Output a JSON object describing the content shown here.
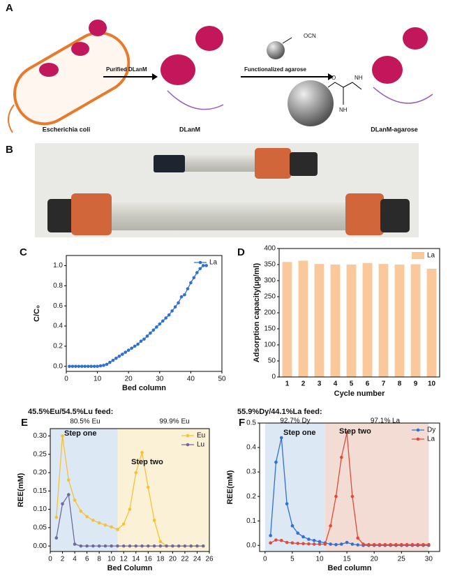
{
  "panel_labels": [
    "A",
    "B",
    "C",
    "D",
    "E",
    "F"
  ],
  "diagram": {
    "host": "Escherichia coli",
    "step1": "Purified DLanM",
    "protein": "DLanM",
    "step2": "Functionalized agarose",
    "reagent_group": "OCN",
    "product": "DLanM-agarose",
    "link_o": "O",
    "link_nh": "NH",
    "link_imine": "NH"
  },
  "chart_data": [
    {
      "type": "line",
      "xlabel": "Bed column",
      "ylabel": "C/C₀",
      "x": [
        1,
        2,
        3,
        4,
        5,
        6,
        7,
        8,
        9,
        10,
        11,
        12,
        13,
        14,
        15,
        16,
        17,
        18,
        19,
        20,
        21,
        22,
        23,
        24,
        25,
        26,
        27,
        28,
        29,
        30,
        31,
        32,
        33,
        34,
        35,
        36,
        37,
        38,
        39,
        40,
        41,
        42,
        43,
        44,
        45
      ],
      "series": [
        {
          "name": "La",
          "color": "#2f6fd6",
          "values": [
            0,
            0,
            0,
            0,
            0,
            0,
            0,
            0,
            0,
            0,
            0.005,
            0.01,
            0.02,
            0.04,
            0.06,
            0.08,
            0.1,
            0.12,
            0.14,
            0.16,
            0.18,
            0.2,
            0.22,
            0.25,
            0.27,
            0.3,
            0.33,
            0.36,
            0.39,
            0.42,
            0.45,
            0.48,
            0.51,
            0.55,
            0.59,
            0.63,
            0.69,
            0.71,
            0.77,
            0.83,
            0.88,
            0.93,
            0.97,
            1.0,
            1.0
          ]
        }
      ],
      "xlim": [
        0,
        50
      ],
      "xticks": [
        0,
        10,
        20,
        30,
        40,
        50
      ],
      "ylim": [
        -0.05,
        1.1
      ],
      "yticks": [
        {
          "value": 0,
          "label": "0.0"
        },
        0.2,
        0.4,
        0.6,
        0.8,
        {
          "value": 1,
          "label": "1.0"
        }
      ],
      "legend": "upper right"
    },
    {
      "type": "bar",
      "xlabel": "Cycle number",
      "ylabel": "Adsorption capacity(μg/ml)",
      "categories": [
        "1",
        "2",
        "3",
        "4",
        "5",
        "6",
        "7",
        "8",
        "9",
        "10"
      ],
      "series": [
        {
          "name": "La",
          "color": "#f9c89b",
          "values": [
            358,
            362,
            352,
            350,
            350,
            355,
            352,
            350,
            351,
            337
          ]
        }
      ],
      "ylim": [
        0,
        400
      ],
      "yticks": [
        0,
        50,
        100,
        150,
        200,
        250,
        300,
        350,
        400
      ],
      "legend": "upper right"
    },
    {
      "type": "line",
      "xlabel": "Bed Column",
      "ylabel": "REE(mM)",
      "annotations": [
        "45.5%Eu/54.5%Lu feed:",
        "80.5% Eu",
        "99.9% Eu",
        "Step one",
        "Step two"
      ],
      "shaded_regions": [
        {
          "from": 0,
          "to": 11,
          "color": "#dde8f5"
        },
        {
          "from": 11,
          "to": 26,
          "color": "#fbf1d6"
        }
      ],
      "x": [
        1,
        2,
        3,
        4,
        5,
        6,
        7,
        8,
        9,
        10,
        11,
        12,
        13,
        14,
        15,
        16,
        17,
        18,
        19,
        20,
        21,
        22,
        23,
        24,
        25
      ],
      "series": [
        {
          "name": "Eu",
          "color": "#f5c136",
          "values": [
            0.078,
            0.3,
            0.18,
            0.125,
            0.095,
            0.08,
            0.07,
            0.063,
            0.057,
            0.052,
            0.045,
            0.06,
            0.1,
            0.2,
            0.255,
            0.16,
            0.07,
            0.012,
            0,
            0,
            0,
            0,
            0,
            0,
            0
          ]
        },
        {
          "name": "Lu",
          "color": "#6e6a9e",
          "values": [
            0.022,
            0.115,
            0.14,
            0.005,
            0,
            0,
            0,
            0,
            0,
            0,
            0,
            0,
            0,
            0,
            0,
            0,
            0,
            0,
            0,
            0,
            0,
            0,
            0,
            0,
            0
          ]
        }
      ],
      "xlim": [
        0,
        26
      ],
      "xticks": [
        0,
        2,
        4,
        6,
        8,
        10,
        12,
        14,
        16,
        18,
        20,
        22,
        24,
        26
      ],
      "ylim": [
        -0.015,
        0.32
      ],
      "yticks": [
        {
          "value": 0,
          "label": "0.00"
        },
        {
          "value": 0.05,
          "label": "0.05"
        },
        {
          "value": 0.1,
          "label": "0.10"
        },
        {
          "value": 0.15,
          "label": "0.15"
        },
        {
          "value": 0.2,
          "label": "0.20"
        },
        {
          "value": 0.25,
          "label": "0.25"
        },
        {
          "value": 0.3,
          "label": "0.30"
        }
      ],
      "legend": "upper right"
    },
    {
      "type": "line",
      "xlabel": "Bed column",
      "ylabel": "REE(mM)",
      "annotations": [
        "55.9%Dy/44.1%La feed:",
        "92.7% Dy",
        "97.1% La",
        "Step one",
        "Step two"
      ],
      "shaded_regions": [
        {
          "from": 0,
          "to": 11,
          "color": "#dde8f5"
        },
        {
          "from": 11,
          "to": 30,
          "color": "#f3dcd3"
        }
      ],
      "x": [
        1,
        2,
        3,
        4,
        5,
        6,
        7,
        8,
        9,
        10,
        11,
        12,
        13,
        14,
        15,
        16,
        17,
        18,
        19,
        20,
        21,
        22,
        23,
        24,
        25,
        26,
        27,
        28,
        29,
        30
      ],
      "series": [
        {
          "name": "Dy",
          "color": "#2f6fd6",
          "values": [
            0.04,
            0.34,
            0.44,
            0.17,
            0.08,
            0.05,
            0.035,
            0.025,
            0.02,
            0.015,
            0.01,
            0.005,
            0.003,
            0.005,
            0.012,
            0.005,
            0.002,
            0,
            0,
            0,
            0,
            0,
            0,
            0,
            0,
            0,
            0,
            0,
            0,
            0
          ]
        },
        {
          "name": "La",
          "color": "#e04a3a",
          "values": [
            0.01,
            0.022,
            0.02,
            0.012,
            0.01,
            0.008,
            0.007,
            0.006,
            0.005,
            0.005,
            0.005,
            0.08,
            0.2,
            0.36,
            0.46,
            0.2,
            0.03,
            0.005,
            0.003,
            0.003,
            0.003,
            0.003,
            0.003,
            0.003,
            0.003,
            0.003,
            0.003,
            0.003,
            0.003,
            0.003
          ]
        }
      ],
      "xlim": [
        -1,
        32
      ],
      "xticks": [
        0,
        5,
        10,
        15,
        20,
        25,
        30
      ],
      "ylim": [
        -0.025,
        0.5
      ],
      "yticks": [
        {
          "value": 0,
          "label": "0.0"
        },
        0.1,
        0.2,
        0.3,
        0.4,
        0.5
      ],
      "legend": "upper right"
    }
  ]
}
